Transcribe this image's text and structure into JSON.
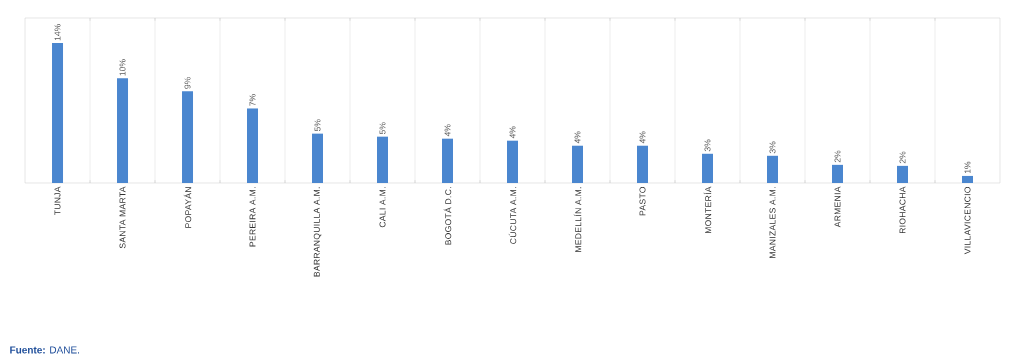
{
  "chart_data": {
    "type": "bar",
    "categories": [
      "TUNJA",
      "SANTA MARTA",
      "POPAYÁN",
      "PEREIRA A.M.",
      "BARRANQUILLA A.M.",
      "CALI A.M.",
      "BOGOTÁ D.C.",
      "CÚCUTA A.M.",
      "MEDELLÍN A.M.",
      "PASTO",
      "MONTERÍA",
      "MANIZALES A.M.",
      "ARMENIA",
      "RIOHACHA",
      "VILLAVICENCIO"
    ],
    "values": [
      13.9,
      10.4,
      9.1,
      7.4,
      4.9,
      4.6,
      4.4,
      4.2,
      3.7,
      3.7,
      2.9,
      2.7,
      1.8,
      1.7,
      0.7
    ],
    "value_labels": [
      "14%",
      "10%",
      "9%",
      "7%",
      "5%",
      "5%",
      "4%",
      "4%",
      "4%",
      "4%",
      "3%",
      "3%",
      "2%",
      "2%",
      "1%"
    ],
    "color": "#4a86cf",
    "grid": "x",
    "annotations": [
      "**Fuente:** DANE."
    ]
  }
}
